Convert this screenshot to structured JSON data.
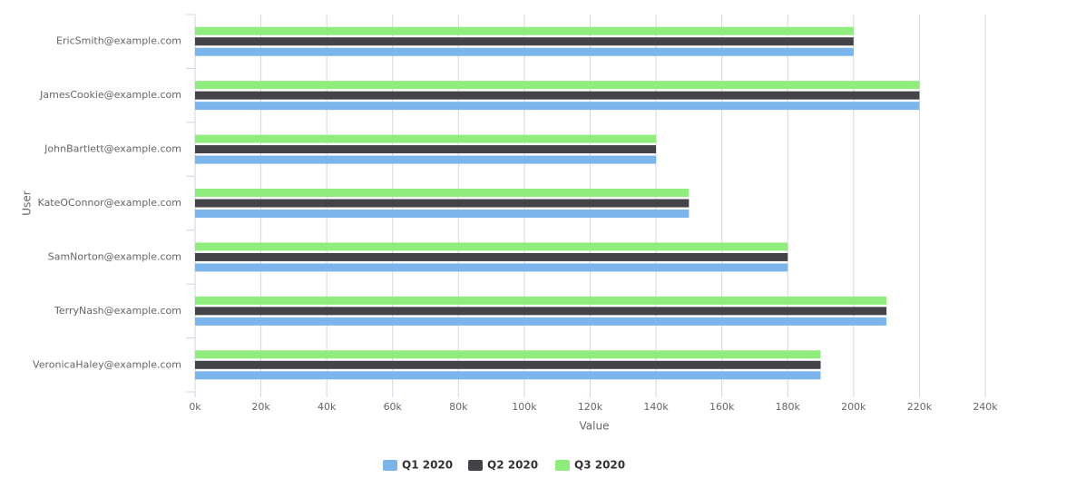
{
  "chart_data": {
    "type": "bar",
    "categories": [
      "EricSmith@example.com",
      "JamesCookie@example.com",
      "JohnBartlett@example.com",
      "KateOConnor@example.com",
      "SamNorton@example.com",
      "TerryNash@example.com",
      "VeronicaHaley@example.com"
    ],
    "series": [
      {
        "name": "Q1 2020",
        "color": "#7cb5ec",
        "values": [
          200000,
          220000,
          140000,
          150000,
          180000,
          210000,
          190000
        ]
      },
      {
        "name": "Q2 2020",
        "color": "#434348",
        "values": [
          200000,
          220000,
          140000,
          150000,
          180000,
          210000,
          190000
        ]
      },
      {
        "name": "Q3 2020",
        "color": "#90ed7d",
        "values": [
          200000,
          220000,
          140000,
          150000,
          180000,
          210000,
          190000
        ]
      }
    ],
    "xlabel": "Value",
    "ylabel": "User",
    "xlim": [
      0,
      240000
    ],
    "xticks": [
      {
        "value": 0,
        "label": "0k"
      },
      {
        "value": 20000,
        "label": "20k"
      },
      {
        "value": 40000,
        "label": "40k"
      },
      {
        "value": 60000,
        "label": "60k"
      },
      {
        "value": 80000,
        "label": "80k"
      },
      {
        "value": 100000,
        "label": "100k"
      },
      {
        "value": 120000,
        "label": "120k"
      },
      {
        "value": 140000,
        "label": "140k"
      },
      {
        "value": 160000,
        "label": "160k"
      },
      {
        "value": 180000,
        "label": "180k"
      },
      {
        "value": 200000,
        "label": "200k"
      },
      {
        "value": 220000,
        "label": "220k"
      },
      {
        "value": 240000,
        "label": "240k"
      }
    ],
    "grid": true,
    "legend": "bottom"
  }
}
